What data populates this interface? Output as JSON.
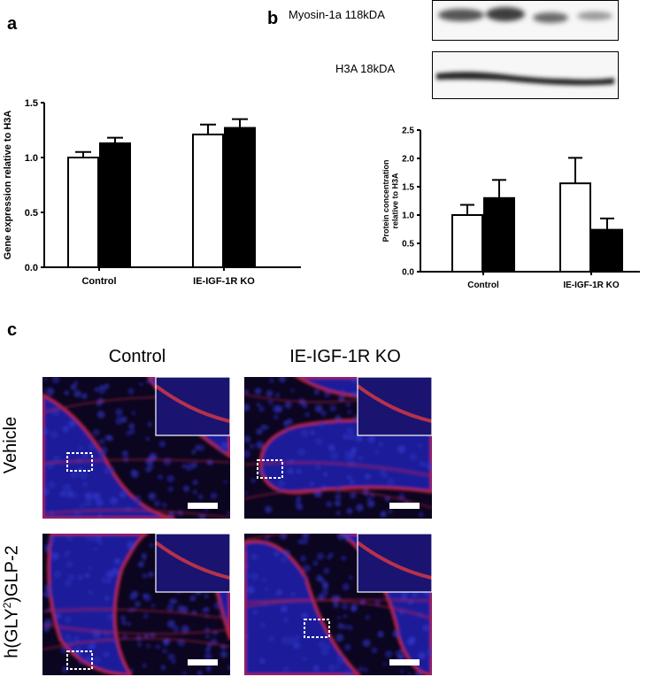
{
  "panels": {
    "a": "a",
    "b": "b",
    "c": "c"
  },
  "blot": {
    "band1_label": "Myosin-1a 118kDA",
    "band2_label": "H3A 18kDA"
  },
  "micrographs": {
    "col_control": "Control",
    "col_ko": "IE-IGF-1R KO",
    "row_vehicle": "Vehicle",
    "row_glp2_prefix": "h(GLY",
    "row_glp2_sup": "2",
    "row_glp2_suffix": ")GLP-2"
  },
  "chart_data": [
    {
      "type": "bar",
      "panel": "a",
      "ylabel": "Gene expression relative to H3A",
      "ylim": [
        0,
        1.5
      ],
      "yticks": [
        "0.0",
        "0.5",
        "1.0",
        "1.5"
      ],
      "categories": [
        "Control",
        "IE-IGF-1R KO"
      ],
      "series": [
        {
          "fill": "#ffffff",
          "values": [
            1.0,
            1.21
          ],
          "errors": [
            0.05,
            0.09
          ]
        },
        {
          "fill": "#000000",
          "values": [
            1.13,
            1.27
          ],
          "errors": [
            0.05,
            0.08
          ]
        }
      ]
    },
    {
      "type": "bar",
      "panel": "b",
      "ylabel": "Protein concentration relative to H3A",
      "ylim": [
        0,
        2.5
      ],
      "yticks": [
        "0.0",
        "0.5",
        "1.0",
        "1.5",
        "2.0",
        "2.5"
      ],
      "categories": [
        "Control",
        "IE-IGF-1R KO"
      ],
      "series": [
        {
          "fill": "#ffffff",
          "values": [
            1.0,
            1.56
          ],
          "errors": [
            0.18,
            0.45
          ]
        },
        {
          "fill": "#000000",
          "values": [
            1.3,
            0.74
          ],
          "errors": [
            0.32,
            0.2
          ]
        }
      ]
    }
  ]
}
